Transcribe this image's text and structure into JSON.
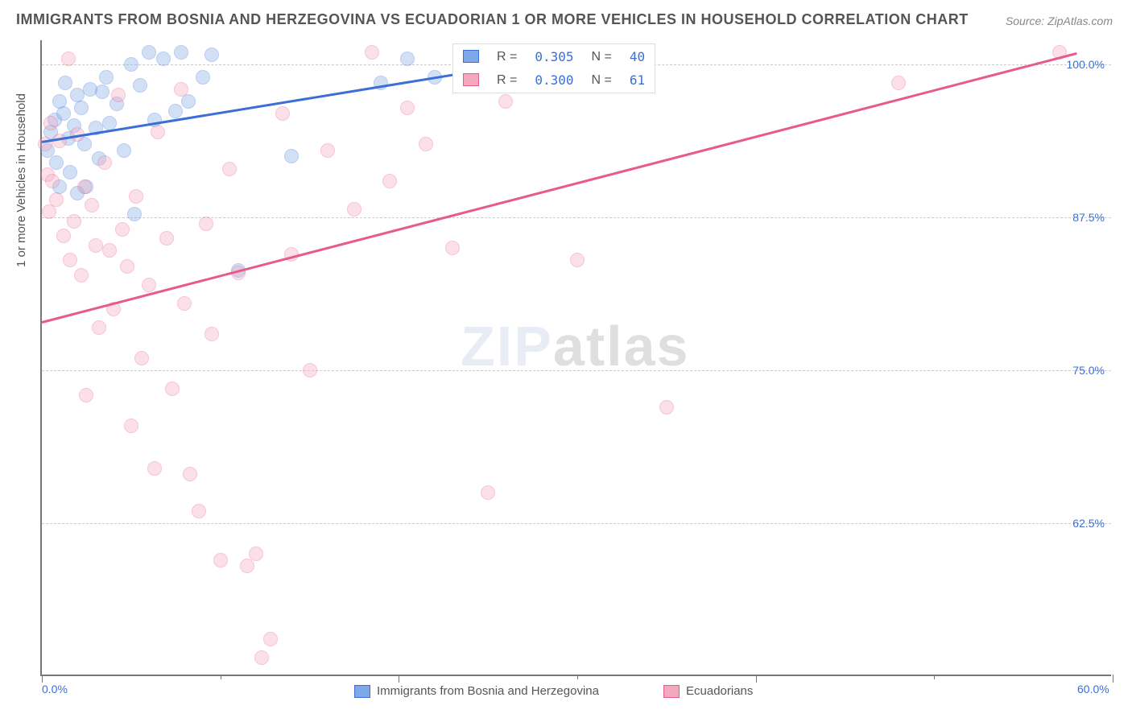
{
  "title": "IMMIGRANTS FROM BOSNIA AND HERZEGOVINA VS ECUADORIAN 1 OR MORE VEHICLES IN HOUSEHOLD CORRELATION CHART",
  "source": "Source: ZipAtlas.com",
  "watermark_a": "ZIP",
  "watermark_b": "atlas",
  "y_axis_title": "1 or more Vehicles in Household",
  "chart": {
    "type": "scatter",
    "background_color": "#ffffff",
    "grid_color": "#cccccc",
    "axis_color": "#777777",
    "label_color": "#3b6fd6",
    "xlim": [
      0,
      60
    ],
    "ylim": [
      50,
      102
    ],
    "x_ticks": [
      0,
      20,
      40,
      60
    ],
    "x_tick_labels": [
      "0.0%",
      "",
      "",
      "60.0%"
    ],
    "y_ticks": [
      62.5,
      75,
      87.5,
      100
    ],
    "y_tick_labels": [
      "62.5%",
      "75.0%",
      "87.5%",
      "100.0%"
    ],
    "x_minor_ticks": [
      10,
      30,
      50
    ],
    "marker_radius": 9,
    "marker_opacity": 0.35,
    "trend_width": 2.5,
    "series": [
      {
        "name": "Immigrants from Bosnia and Herzegovina",
        "color_fill": "#7fa8e8",
        "color_stroke": "#3b6fd6",
        "r": "0.305",
        "n": "40",
        "trend": {
          "x1": 0,
          "y1": 93.8,
          "x2": 26,
          "y2": 100
        },
        "points": [
          [
            0.3,
            93.0
          ],
          [
            0.5,
            94.5
          ],
          [
            0.7,
            95.5
          ],
          [
            0.8,
            92.0
          ],
          [
            1.0,
            97.0
          ],
          [
            1.0,
            90.0
          ],
          [
            1.2,
            96.0
          ],
          [
            1.3,
            98.5
          ],
          [
            1.5,
            94.0
          ],
          [
            1.6,
            91.2
          ],
          [
            1.8,
            95.0
          ],
          [
            2.0,
            97.5
          ],
          [
            2.0,
            89.5
          ],
          [
            2.2,
            96.5
          ],
          [
            2.4,
            93.5
          ],
          [
            2.5,
            90.0
          ],
          [
            2.7,
            98.0
          ],
          [
            3.0,
            94.8
          ],
          [
            3.2,
            92.3
          ],
          [
            3.4,
            97.8
          ],
          [
            3.6,
            99.0
          ],
          [
            3.8,
            95.2
          ],
          [
            4.2,
            96.8
          ],
          [
            4.6,
            93.0
          ],
          [
            5.0,
            100.0
          ],
          [
            5.2,
            87.8
          ],
          [
            5.5,
            98.3
          ],
          [
            6.0,
            101.0
          ],
          [
            6.3,
            95.5
          ],
          [
            6.8,
            100.5
          ],
          [
            7.5,
            96.2
          ],
          [
            7.8,
            101.0
          ],
          [
            8.2,
            97.0
          ],
          [
            9.0,
            99.0
          ],
          [
            9.5,
            100.8
          ],
          [
            11.0,
            83.2
          ],
          [
            14.0,
            92.5
          ],
          [
            19.0,
            98.5
          ],
          [
            20.5,
            100.5
          ],
          [
            22.0,
            99.0
          ]
        ]
      },
      {
        "name": "Ecuadorians",
        "color_fill": "#f4a8bd",
        "color_stroke": "#e85a8a",
        "r": "0.300",
        "n": "61",
        "trend": {
          "x1": 0,
          "y1": 79.0,
          "x2": 58,
          "y2": 101
        },
        "points": [
          [
            0.2,
            93.5
          ],
          [
            0.3,
            91.0
          ],
          [
            0.4,
            88.0
          ],
          [
            0.5,
            95.2
          ],
          [
            0.6,
            90.5
          ],
          [
            0.8,
            89.0
          ],
          [
            1.0,
            93.8
          ],
          [
            1.2,
            86.0
          ],
          [
            1.5,
            100.5
          ],
          [
            1.6,
            84.0
          ],
          [
            1.8,
            87.2
          ],
          [
            2.0,
            94.3
          ],
          [
            2.2,
            82.8
          ],
          [
            2.4,
            90.0
          ],
          [
            2.5,
            73.0
          ],
          [
            2.8,
            88.5
          ],
          [
            3.0,
            85.2
          ],
          [
            3.2,
            78.5
          ],
          [
            3.5,
            92.0
          ],
          [
            3.8,
            84.8
          ],
          [
            4.0,
            80.0
          ],
          [
            4.3,
            97.5
          ],
          [
            4.5,
            86.5
          ],
          [
            4.8,
            83.5
          ],
          [
            5.0,
            70.5
          ],
          [
            5.3,
            89.2
          ],
          [
            5.6,
            76.0
          ],
          [
            6.0,
            82.0
          ],
          [
            6.3,
            67.0
          ],
          [
            6.5,
            94.5
          ],
          [
            7.0,
            85.8
          ],
          [
            7.3,
            73.5
          ],
          [
            7.8,
            98.0
          ],
          [
            8.0,
            80.5
          ],
          [
            8.3,
            66.5
          ],
          [
            8.8,
            63.5
          ],
          [
            9.2,
            87.0
          ],
          [
            9.5,
            78.0
          ],
          [
            10.0,
            59.5
          ],
          [
            10.5,
            91.5
          ],
          [
            11.0,
            83.0
          ],
          [
            11.5,
            59.0
          ],
          [
            12.0,
            60.0
          ],
          [
            12.3,
            51.5
          ],
          [
            12.8,
            53.0
          ],
          [
            13.5,
            96.0
          ],
          [
            14.0,
            84.5
          ],
          [
            15.0,
            75.0
          ],
          [
            16.0,
            93.0
          ],
          [
            17.5,
            88.2
          ],
          [
            18.5,
            101.0
          ],
          [
            19.5,
            90.5
          ],
          [
            20.5,
            96.5
          ],
          [
            21.5,
            93.5
          ],
          [
            23.0,
            85.0
          ],
          [
            25.0,
            65.0
          ],
          [
            26.0,
            97.0
          ],
          [
            30.0,
            84.0
          ],
          [
            35.0,
            72.0
          ],
          [
            48.0,
            98.5
          ],
          [
            57.0,
            101.0
          ]
        ]
      }
    ]
  },
  "bottom_legend": [
    {
      "label": "Immigrants from Bosnia and Herzegovina",
      "fill": "#7fa8e8",
      "stroke": "#3b6fd6"
    },
    {
      "label": "Ecuadorians",
      "fill": "#f4a8bd",
      "stroke": "#e85a8a"
    }
  ]
}
